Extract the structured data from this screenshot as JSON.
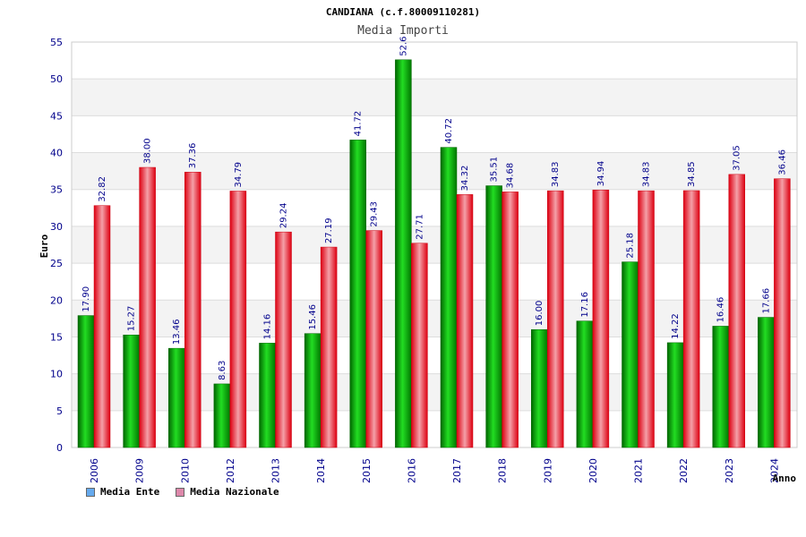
{
  "chart_data": {
    "type": "bar",
    "title": "CANDIANA (c.f.80009110281)",
    "subtitle": "Media Importi",
    "xlabel": "Anno",
    "ylabel": "Euro",
    "ylim": [
      0,
      55
    ],
    "ytick_step": 5,
    "grid": true,
    "legend_position": "bottom-left",
    "categories": [
      "2006",
      "2009",
      "2010",
      "2012",
      "2013",
      "2014",
      "2015",
      "2016",
      "2017",
      "2018",
      "2019",
      "2020",
      "2021",
      "2022",
      "2023",
      "2024"
    ],
    "series": [
      {
        "name": "Media Ente",
        "color": "#00bb00",
        "legend_color": "#66aaee",
        "values": [
          17.9,
          15.27,
          13.46,
          8.63,
          14.16,
          15.46,
          41.72,
          52.6,
          40.72,
          35.51,
          16.0,
          17.16,
          25.18,
          14.22,
          16.46,
          17.66
        ],
        "labels": [
          "17.90",
          "15.27",
          "13.46",
          "8.63",
          "14.16",
          "15.46",
          "41.72",
          "52.6",
          "40.72",
          "35.51",
          "16.00",
          "17.16",
          "25.18",
          "14.22",
          "16.46",
          "17.66"
        ]
      },
      {
        "name": "Media Nazionale",
        "color": "#ee2233",
        "legend_color": "#dd88aa",
        "values": [
          32.82,
          38.0,
          37.36,
          34.79,
          29.24,
          27.19,
          29.43,
          27.71,
          34.32,
          34.68,
          34.83,
          34.94,
          34.83,
          34.85,
          37.05,
          36.46
        ],
        "labels": [
          "32.82",
          "38.00",
          "37.36",
          "34.79",
          "29.24",
          "27.19",
          "29.43",
          "27.71",
          "34.32",
          "34.68",
          "34.83",
          "34.94",
          "34.83",
          "34.85",
          "37.05",
          "36.46"
        ]
      }
    ]
  }
}
